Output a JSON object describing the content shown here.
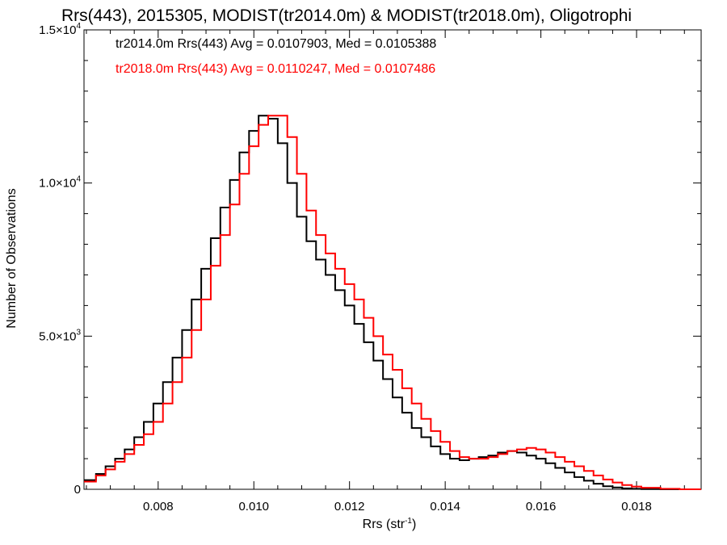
{
  "chart_data": {
    "type": "line",
    "title": "Rrs(443), 2015305, MODIST(tr2014.0m) & MODIST(tr2018.0m), Oligotrophi",
    "xlabel": "Rrs (str",
    "xlabel_exp": "-1",
    "xlabel_suffix": ")",
    "ylabel": "Number of Observations",
    "xlim": [
      0.00645,
      0.01935
    ],
    "ylim": [
      0,
      15000
    ],
    "x_ticks": [
      {
        "value": 0.008,
        "label": "0.008"
      },
      {
        "value": 0.01,
        "label": "0.010"
      },
      {
        "value": 0.012,
        "label": "0.012"
      },
      {
        "value": 0.014,
        "label": "0.014"
      },
      {
        "value": 0.016,
        "label": "0.016"
      },
      {
        "value": 0.018,
        "label": "0.018"
      }
    ],
    "y_ticks": [
      {
        "value": 0,
        "mant": "0",
        "exp": ""
      },
      {
        "value": 5000,
        "mant": "5.0×10",
        "exp": "3"
      },
      {
        "value": 10000,
        "mant": "1.0×10",
        "exp": "4"
      },
      {
        "value": 15000,
        "mant": "1.5×10",
        "exp": "4"
      }
    ],
    "legend": [
      {
        "text": "tr2014.0m Rrs(443) Avg = 0.0107903, Med = 0.0105388",
        "color": "#000000"
      },
      {
        "text": "tr2018.0m Rrs(443) Avg = 0.0110247, Med = 0.0107486",
        "color": "#ff0000"
      }
    ],
    "series": [
      {
        "name": "tr2014.0m",
        "color": "#000000",
        "x": [
          0.0065,
          0.0067,
          0.0069,
          0.0071,
          0.0073,
          0.0075,
          0.0077,
          0.0079,
          0.0081,
          0.0083,
          0.0085,
          0.0087,
          0.0089,
          0.0091,
          0.0093,
          0.0095,
          0.0097,
          0.0099,
          0.0101,
          0.0103,
          0.0105,
          0.0107,
          0.0109,
          0.0111,
          0.0113,
          0.0115,
          0.0117,
          0.0119,
          0.0121,
          0.0123,
          0.0125,
          0.0127,
          0.0129,
          0.0131,
          0.0133,
          0.0135,
          0.0137,
          0.0139,
          0.0141,
          0.0143,
          0.0145,
          0.0147,
          0.0149,
          0.0151,
          0.0153,
          0.0155,
          0.0157,
          0.0159,
          0.0161,
          0.0163,
          0.0165,
          0.0167,
          0.0169,
          0.0171,
          0.0173,
          0.0175,
          0.0177,
          0.0179,
          0.0181,
          0.0185,
          0.0189,
          0.0193
        ],
        "y": [
          300,
          500,
          750,
          1000,
          1300,
          1700,
          2200,
          2800,
          3500,
          4300,
          5200,
          6200,
          7200,
          8200,
          9200,
          10100,
          11000,
          11700,
          12200,
          12100,
          11300,
          10000,
          8900,
          8100,
          7500,
          7000,
          6500,
          6000,
          5400,
          4800,
          4200,
          3600,
          3000,
          2500,
          2000,
          1700,
          1400,
          1150,
          1000,
          950,
          1000,
          1050,
          1100,
          1200,
          1250,
          1200,
          1100,
          1000,
          850,
          700,
          550,
          400,
          280,
          180,
          100,
          60,
          30,
          15,
          5,
          0,
          0,
          0
        ]
      },
      {
        "name": "tr2018.0m",
        "color": "#ff0000",
        "x": [
          0.0065,
          0.0067,
          0.0069,
          0.0071,
          0.0073,
          0.0075,
          0.0077,
          0.0079,
          0.0081,
          0.0083,
          0.0085,
          0.0087,
          0.0089,
          0.0091,
          0.0093,
          0.0095,
          0.0097,
          0.0099,
          0.0101,
          0.0103,
          0.0105,
          0.0107,
          0.0109,
          0.0111,
          0.0113,
          0.0115,
          0.0117,
          0.0119,
          0.0121,
          0.0123,
          0.0125,
          0.0127,
          0.0129,
          0.0131,
          0.0133,
          0.0135,
          0.0137,
          0.0139,
          0.0141,
          0.0143,
          0.0145,
          0.0147,
          0.0149,
          0.0151,
          0.0153,
          0.0155,
          0.0157,
          0.0159,
          0.0161,
          0.0163,
          0.0165,
          0.0167,
          0.0169,
          0.0171,
          0.0173,
          0.0175,
          0.0177,
          0.0179,
          0.0181,
          0.0185,
          0.0189,
          0.0193
        ],
        "y": [
          250,
          450,
          650,
          900,
          1150,
          1450,
          1800,
          2200,
          2800,
          3500,
          4300,
          5200,
          6200,
          7300,
          8300,
          9300,
          10300,
          11200,
          11900,
          12200,
          12200,
          11500,
          10300,
          9100,
          8300,
          7700,
          7200,
          6700,
          6200,
          5600,
          5000,
          4400,
          3900,
          3300,
          2800,
          2300,
          1900,
          1550,
          1250,
          1050,
          1000,
          1000,
          1050,
          1150,
          1250,
          1300,
          1350,
          1300,
          1200,
          1050,
          900,
          750,
          600,
          450,
          320,
          220,
          140,
          90,
          50,
          15,
          0,
          0
        ]
      }
    ]
  }
}
